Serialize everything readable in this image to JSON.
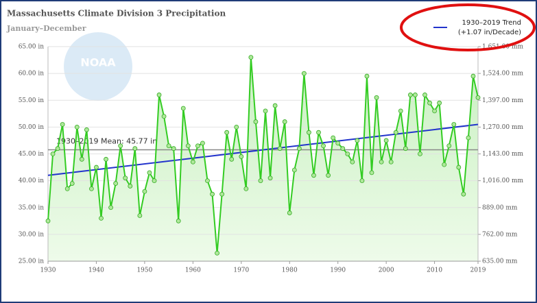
{
  "chart_data": {
    "type": "line",
    "title": "Massachusetts Climate Division 3 Precipitation",
    "subtitle": "January–December",
    "watermark": "NOAA",
    "x": [
      1930,
      1931,
      1932,
      1933,
      1934,
      1935,
      1936,
      1937,
      1938,
      1939,
      1940,
      1941,
      1942,
      1943,
      1944,
      1945,
      1946,
      1947,
      1948,
      1949,
      1950,
      1951,
      1952,
      1953,
      1954,
      1955,
      1956,
      1957,
      1958,
      1959,
      1960,
      1961,
      1962,
      1963,
      1964,
      1965,
      1966,
      1967,
      1968,
      1969,
      1970,
      1971,
      1972,
      1973,
      1974,
      1975,
      1976,
      1977,
      1978,
      1979,
      1980,
      1981,
      1982,
      1983,
      1984,
      1985,
      1986,
      1987,
      1988,
      1989,
      1990,
      1991,
      1992,
      1993,
      1994,
      1995,
      1996,
      1997,
      1998,
      1999,
      2000,
      2001,
      2002,
      2003,
      2004,
      2005,
      2006,
      2007,
      2008,
      2009,
      2010,
      2011,
      2012,
      2013,
      2014,
      2015,
      2016,
      2017,
      2018,
      2019
    ],
    "series": [
      {
        "name": "Precipitation",
        "color": "#33cc22",
        "values": [
          32.5,
          45,
          46,
          50.5,
          38.5,
          39.5,
          50,
          44,
          49.5,
          38.5,
          42.5,
          33,
          44,
          35,
          39.5,
          46.5,
          40.5,
          39,
          46,
          33.5,
          38,
          41.5,
          40,
          56,
          52,
          46.5,
          46,
          32.5,
          53.5,
          46.5,
          43.5,
          46.5,
          47,
          40,
          37.5,
          26.5,
          37.5,
          49,
          44,
          50,
          44.5,
          38.5,
          63,
          51,
          40,
          53,
          40.5,
          54,
          46,
          51,
          34,
          42,
          46,
          60,
          49,
          41,
          49,
          46.5,
          41,
          48,
          47,
          46,
          45,
          43.5,
          47.5,
          40,
          59.5,
          41.5,
          55.5,
          43.5,
          47.5,
          43.5,
          49,
          53,
          46,
          56,
          56,
          45,
          56,
          54.5,
          53,
          54.5,
          43,
          46.5,
          50.5,
          42.5,
          37.5,
          48,
          59.5,
          55.5
        ]
      }
    ],
    "trend": {
      "name": "1930–2019 Trend",
      "rate": "(+1.07 in/Decade)",
      "color": "#2233cc",
      "x": [
        1930,
        2019
      ],
      "values": [
        41,
        50.5
      ]
    },
    "mean": {
      "label": "1930–2019 Mean: 45.77 in",
      "value": 45.77,
      "color": "#888888"
    },
    "xlim": [
      1930,
      2019
    ],
    "xticks": [
      1930,
      1940,
      1950,
      1960,
      1970,
      1980,
      1990,
      2000,
      2010,
      2019
    ],
    "ylim": [
      25,
      65
    ],
    "yticks": [
      {
        "value": 25,
        "label": "25.00 in"
      },
      {
        "value": 30,
        "label": "30.00 in"
      },
      {
        "value": 35,
        "label": "35.00 in"
      },
      {
        "value": 40,
        "label": "40.00 in"
      },
      {
        "value": 45,
        "label": "45.00 in"
      },
      {
        "value": 50,
        "label": "50.00 in"
      },
      {
        "value": 55,
        "label": "55.00 in"
      },
      {
        "value": 60,
        "label": "60.00 in"
      },
      {
        "value": 65,
        "label": "65.00 in"
      }
    ],
    "y2lim": [
      635,
      1651
    ],
    "y2ticks": [
      {
        "value": 635,
        "label": "635.00 mm"
      },
      {
        "value": 762,
        "label": "762.00 mm"
      },
      {
        "value": 889,
        "label": "889.00 mm"
      },
      {
        "value": 1016,
        "label": "1,016.00 mm"
      },
      {
        "value": 1143,
        "label": "1,143.00 mm"
      },
      {
        "value": 1270,
        "label": "1,270.00 mm"
      },
      {
        "value": 1397,
        "label": "1,397.00 mm"
      },
      {
        "value": 1524,
        "label": "1,524.00 mm"
      },
      {
        "value": 1651,
        "label": "1,651.00 mm"
      }
    ],
    "grid": true
  }
}
